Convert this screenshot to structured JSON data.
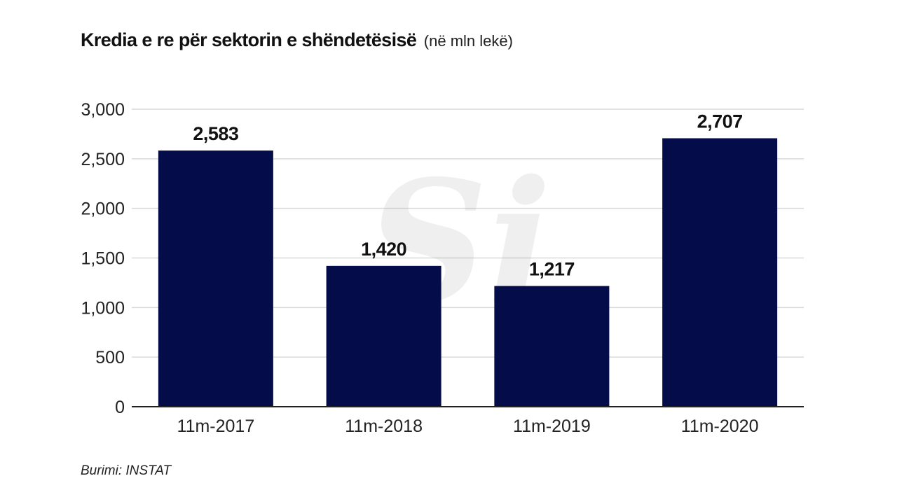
{
  "header": {
    "title": "Kredia e re për sektorin e shëndetësisë",
    "unit": "(në mln lekë)"
  },
  "chart_data": {
    "type": "bar",
    "categories": [
      "11m-2017",
      "11m-2018",
      "11m-2019",
      "11m-2020"
    ],
    "values": [
      2583,
      1420,
      1217,
      2707
    ],
    "data_labels": [
      "2,583",
      "1,420",
      "1,217",
      "2,707"
    ],
    "y_ticks": [
      0,
      500,
      1000,
      1500,
      2000,
      2500,
      3000
    ],
    "y_tick_labels": [
      "0",
      "500",
      "1,000",
      "1,500",
      "2,000",
      "2,500",
      "3,000"
    ],
    "ylim": [
      0,
      3000
    ],
    "grid": true,
    "legend": "none",
    "bar_color": "#050c4a",
    "grid_color": "#d9d9d9"
  },
  "watermark": {
    "text": "Si"
  },
  "footer": {
    "source": "Burimi: INSTAT"
  }
}
